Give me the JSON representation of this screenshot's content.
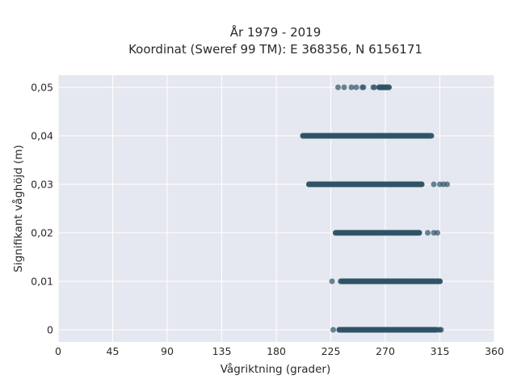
{
  "chart_data": {
    "type": "scatter",
    "title": "År 1979 - 2019",
    "subtitle": "Koordinat (Sweref 99 TM): E 368356, N 6156171",
    "xlabel": "Vågriktning (grader)",
    "ylabel": "Signifikant våghöjd (m)",
    "xlim": [
      0,
      360
    ],
    "ylim": [
      -0.0025,
      0.0525
    ],
    "x_ticks": [
      0,
      45,
      90,
      135,
      180,
      225,
      270,
      315,
      360
    ],
    "x_tick_labels": [
      "0",
      "45",
      "90",
      "135",
      "180",
      "225",
      "270",
      "315",
      "360"
    ],
    "y_ticks": [
      0,
      0.01,
      0.02,
      0.03,
      0.04,
      0.05
    ],
    "y_tick_labels": [
      "0",
      "0,01",
      "0,02",
      "0,03",
      "0,04",
      "0,05"
    ],
    "grid": true,
    "background": "#e5e8f0",
    "point_color": "#2e5266",
    "bands": [
      {
        "y": 0,
        "x_min": 227,
        "x_max": 316,
        "dense_min": 232,
        "dense_max": 312,
        "outliers": [
          227,
          314,
          315,
          316
        ]
      },
      {
        "y": 0.01,
        "x_min": 226,
        "x_max": 316,
        "dense_min": 234,
        "dense_max": 315,
        "outliers": [
          226,
          233
        ]
      },
      {
        "y": 0.02,
        "x_min": 229,
        "x_max": 313,
        "dense_min": 229,
        "dense_max": 298,
        "outliers": [
          305,
          310,
          313
        ]
      },
      {
        "y": 0.03,
        "x_min": 207,
        "x_max": 321,
        "dense_min": 207,
        "dense_max": 300,
        "outliers": [
          310,
          315,
          318,
          321
        ]
      },
      {
        "y": 0.04,
        "x_min": 202,
        "x_max": 308,
        "dense_min": 202,
        "dense_max": 308,
        "outliers": []
      },
      {
        "y": 0.05,
        "x_min": 231,
        "x_max": 273,
        "dense_min": 265,
        "dense_max": 273,
        "outliers": [
          231,
          236,
          242,
          246,
          251,
          252,
          260,
          261,
          267
        ]
      }
    ]
  }
}
